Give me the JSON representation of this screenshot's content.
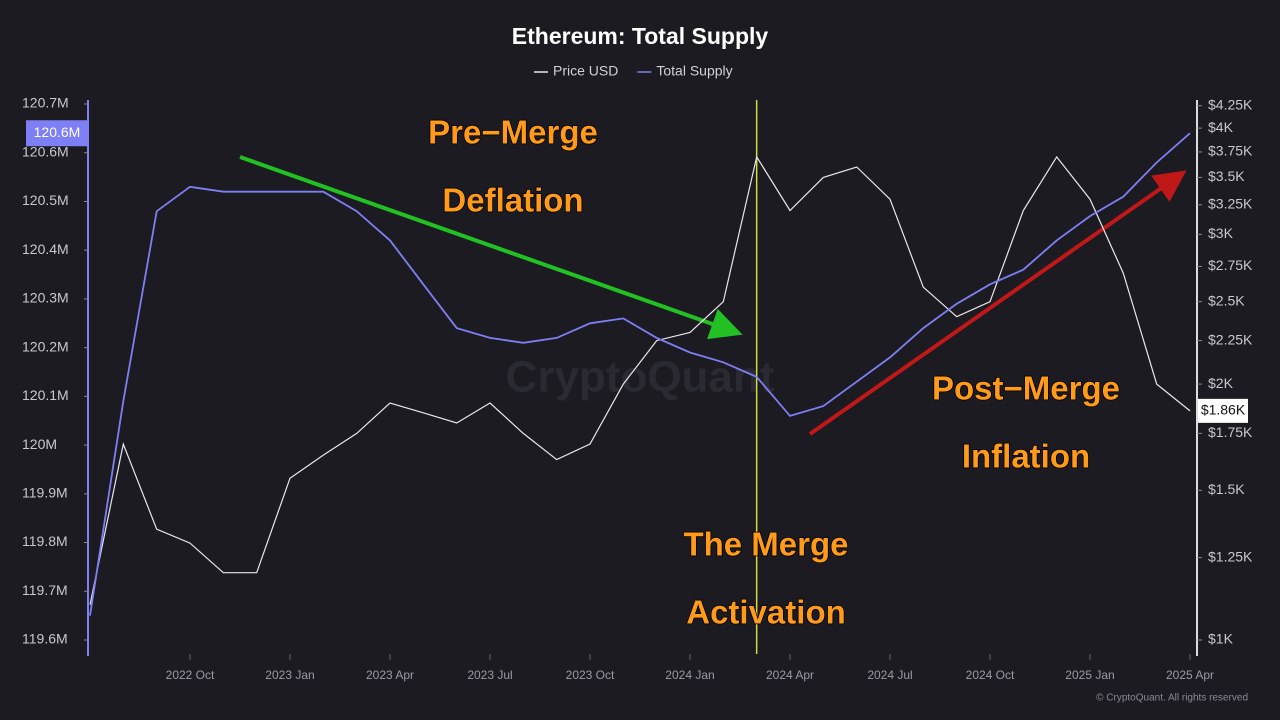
{
  "chart_data": {
    "type": "line",
    "title": "Ethereum: Total Supply",
    "x": [
      "2022-07",
      "2022-08",
      "2022-09",
      "2022-10",
      "2022-11",
      "2022-12",
      "2023-01",
      "2023-02",
      "2023-03",
      "2023-04",
      "2023-05",
      "2023-06",
      "2023-07",
      "2023-08",
      "2023-09",
      "2023-10",
      "2023-11",
      "2023-12",
      "2024-01",
      "2024-02",
      "2024-03",
      "2024-04",
      "2024-05",
      "2024-06",
      "2024-07",
      "2024-08",
      "2024-09",
      "2024-10",
      "2024-11",
      "2024-12",
      "2025-01",
      "2025-02",
      "2025-03",
      "2025-04"
    ],
    "xlim": [
      "2022-07",
      "2025-04"
    ],
    "xticks": [
      {
        "value": "2022-10",
        "label": "2022 Oct"
      },
      {
        "value": "2023-01",
        "label": "2023 Jan"
      },
      {
        "value": "2023-04",
        "label": "2023 Apr"
      },
      {
        "value": "2023-07",
        "label": "2023 Jul"
      },
      {
        "value": "2023-10",
        "label": "2023 Oct"
      },
      {
        "value": "2024-01",
        "label": "2024 Jan"
      },
      {
        "value": "2024-04",
        "label": "2024 Apr"
      },
      {
        "value": "2024-07",
        "label": "2024 Jul"
      },
      {
        "value": "2024-10",
        "label": "2024 Oct"
      },
      {
        "value": "2025-01",
        "label": "2025 Jan"
      },
      {
        "value": "2025-04",
        "label": "2025 Apr"
      }
    ],
    "series": [
      {
        "name": "Price USD",
        "color": "#e8e8ec",
        "axis": "y2",
        "last_label": "$1.86K",
        "values": [
          1100,
          1700,
          1350,
          1300,
          1200,
          1200,
          1550,
          1650,
          1750,
          1900,
          1850,
          1800,
          1900,
          1750,
          1630,
          1700,
          2000,
          2250,
          2300,
          2500,
          3700,
          3200,
          3500,
          3600,
          3300,
          2600,
          2400,
          2500,
          3200,
          3700,
          3300,
          2700,
          2000,
          1860
        ]
      },
      {
        "name": "Total Supply",
        "color": "#7f7ff5",
        "last_label": "120.6M",
        "values": [
          119.65,
          120.09,
          120.48,
          120.53,
          120.52,
          120.52,
          120.52,
          120.52,
          120.48,
          120.42,
          120.33,
          120.24,
          120.22,
          120.21,
          120.22,
          120.25,
          120.26,
          120.22,
          120.19,
          120.17,
          120.14,
          120.06,
          120.08,
          120.13,
          120.18,
          120.24,
          120.29,
          120.33,
          120.36,
          120.42,
          120.47,
          120.51,
          120.58,
          120.64
        ]
      }
    ],
    "ylim": [
      119.6,
      120.7
    ],
    "yticks": [
      {
        "value": 119.6,
        "label": "119.6M"
      },
      {
        "value": 119.7,
        "label": "119.7M"
      },
      {
        "value": 119.8,
        "label": "119.8M"
      },
      {
        "value": 119.9,
        "label": "119.9M"
      },
      {
        "value": 120,
        "label": "120M"
      },
      {
        "value": 120.1,
        "label": "120.1M"
      },
      {
        "value": 120.2,
        "label": "120.2M"
      },
      {
        "value": 120.3,
        "label": "120.3M"
      },
      {
        "value": 120.4,
        "label": "120.4M"
      },
      {
        "value": 120.5,
        "label": "120.5M"
      },
      {
        "value": 120.6,
        "label": "120.6M"
      },
      {
        "value": 120.7,
        "label": "120.7M"
      }
    ],
    "y2scale": "log",
    "y2lim": [
      1000,
      4270
    ],
    "y2ticks": [
      {
        "value": 1000,
        "label": "$1K"
      },
      {
        "value": 1250,
        "label": "$1.25K"
      },
      {
        "value": 1500,
        "label": "$1.5K"
      },
      {
        "value": 1750,
        "label": "$1.75K"
      },
      {
        "value": 2000,
        "label": "$2K"
      },
      {
        "value": 2250,
        "label": "$2.25K"
      },
      {
        "value": 2500,
        "label": "$2.5K"
      },
      {
        "value": 2750,
        "label": "$2.75K"
      },
      {
        "value": 3000,
        "label": "$3K"
      },
      {
        "value": 3250,
        "label": "$3.25K"
      },
      {
        "value": 3500,
        "label": "$3.5K"
      },
      {
        "value": 3750,
        "label": "$3.75K"
      },
      {
        "value": 4000,
        "label": "$4K"
      },
      {
        "value": 4250,
        "label": "$4.25K"
      }
    ],
    "vline": {
      "x": "2024-03",
      "color": "#d8d840"
    },
    "annotations": [
      "Pre−Merge",
      "Deflation",
      "The Merge",
      "Activation",
      "Post−Merge",
      "Inflation"
    ],
    "watermark": "CryptoQuant",
    "copyright": "© CryptoQuant. All rights reserved"
  }
}
